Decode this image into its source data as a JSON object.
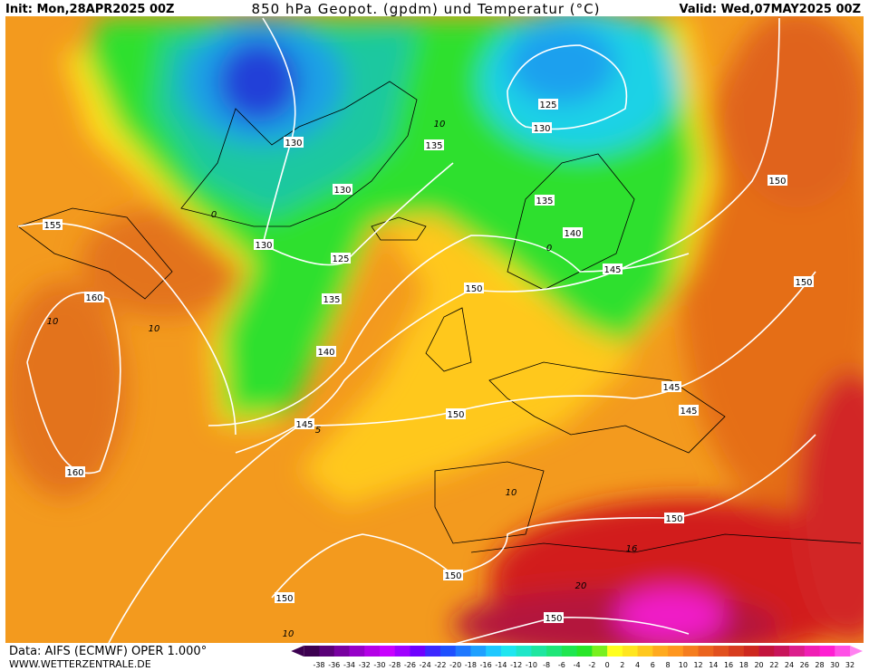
{
  "header": {
    "init": "Init: Mon,28APR2025 00Z",
    "title": "850 hPa Geopot. (gpdm) und Temperatur (°C)",
    "valid": "Valid: Wed,07MAY2025 00Z"
  },
  "footer": {
    "data_source": "Data: AIFS (ECMWF) OPER 1.000°",
    "website": "WWW.WETTERZENTRALE.DE"
  },
  "legend": {
    "labels": [
      -38,
      -36,
      -34,
      -32,
      -30,
      -28,
      -26,
      -24,
      -22,
      -20,
      -18,
      -16,
      -14,
      -12,
      -10,
      -8,
      -6,
      -4,
      -2,
      0,
      2,
      4,
      6,
      8,
      10,
      12,
      14,
      16,
      18,
      20,
      22,
      24,
      26,
      28,
      30,
      32
    ]
  },
  "contour_labels": [
    155,
    160,
    160,
    130,
    130,
    130,
    125,
    135,
    140,
    145,
    150,
    150,
    135,
    125,
    130,
    135,
    140,
    145,
    150,
    150,
    145,
    145,
    150,
    150,
    150,
    150
  ],
  "isotherm_labels": [
    10,
    0,
    0,
    10,
    10,
    5,
    10,
    16,
    20,
    10
  ]
}
